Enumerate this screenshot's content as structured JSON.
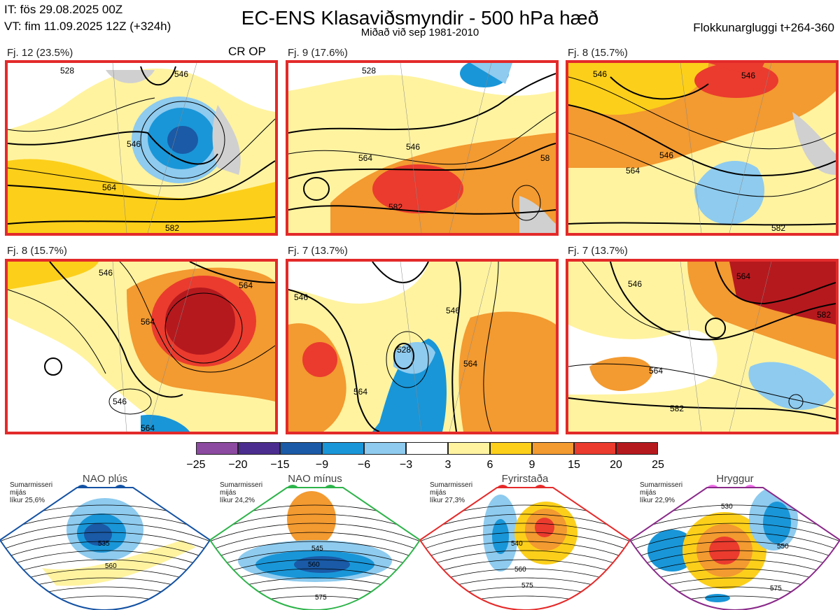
{
  "header": {
    "init_time": "IT: fös 29.08.2025 00Z",
    "valid_time": "VT: fim 11.09.2025 12Z  (+324h)",
    "title": "EC-ENS Klasaviðsmyndir - 500 hPa hæð",
    "subtitle": "Miðað við sep 1981-2010",
    "window": "Flokkunargluggi t+264-360",
    "crop_label": "CR OP"
  },
  "panels": [
    {
      "label": "Fj. 12 (23.5%)",
      "contours": [
        "546",
        "546",
        "564",
        "582",
        "528"
      ]
    },
    {
      "label": "Fj. 9 (17.6%)",
      "contours": [
        "528",
        "546",
        "564",
        "582",
        "58"
      ]
    },
    {
      "label": "Fj. 8 (15.7%)",
      "contours": [
        "546",
        "546",
        "564",
        "582",
        "546"
      ]
    },
    {
      "label": "Fj. 8 (15.7%)",
      "contours": [
        "546",
        "564",
        "564",
        "546",
        "564"
      ]
    },
    {
      "label": "Fj. 7 (13.7%)",
      "contours": [
        "546",
        "546",
        "528",
        "564",
        "564"
      ]
    },
    {
      "label": "Fj. 7 (13.7%)",
      "contours": [
        "546",
        "564",
        "582",
        "564",
        "582"
      ]
    }
  ],
  "colorbar": {
    "colors": [
      "#8c4aa0",
      "#4b2d8f",
      "#1a5aa6",
      "#1996d8",
      "#8ecbef",
      "#ffffff",
      "#fff3a0",
      "#fccf1a",
      "#f39a30",
      "#ea3b2e",
      "#b5191e"
    ],
    "ticks": [
      "−25",
      "−20",
      "−15",
      "−9",
      "−6",
      "−3",
      "3",
      "6",
      "9",
      "15",
      "20",
      "25"
    ]
  },
  "regimes": [
    {
      "name": "NAO plús",
      "season": "Sumarmisseri",
      "type": "mijás",
      "prob": "líkur 25,6%",
      "dot_color": "#1452a3",
      "frame_color": "#1452a3",
      "contours": [
        "535",
        "560"
      ]
    },
    {
      "name": "NAO mínus",
      "season": "Sumarmisseri",
      "type": "mijás",
      "prob": "líkur 24,2%",
      "dot_color": "#2db34a",
      "frame_color": "#2db34a",
      "contours": [
        "545",
        "560",
        "575"
      ]
    },
    {
      "name": "Fyrirstaða",
      "season": "Sumarmisseri",
      "type": "mijás",
      "prob": "líkur 27,3%",
      "dot_color": "#e52a2a",
      "frame_color": "#e52a2a",
      "contours": [
        "540",
        "560",
        "575"
      ]
    },
    {
      "name": "Hryggur",
      "season": "Sumarmisseri",
      "type": "mijás",
      "prob": "líkur 22,9%",
      "dot_color": "#ee6de8",
      "frame_color": "#8a2a8a",
      "contours": [
        "530",
        "550",
        "575"
      ]
    }
  ]
}
